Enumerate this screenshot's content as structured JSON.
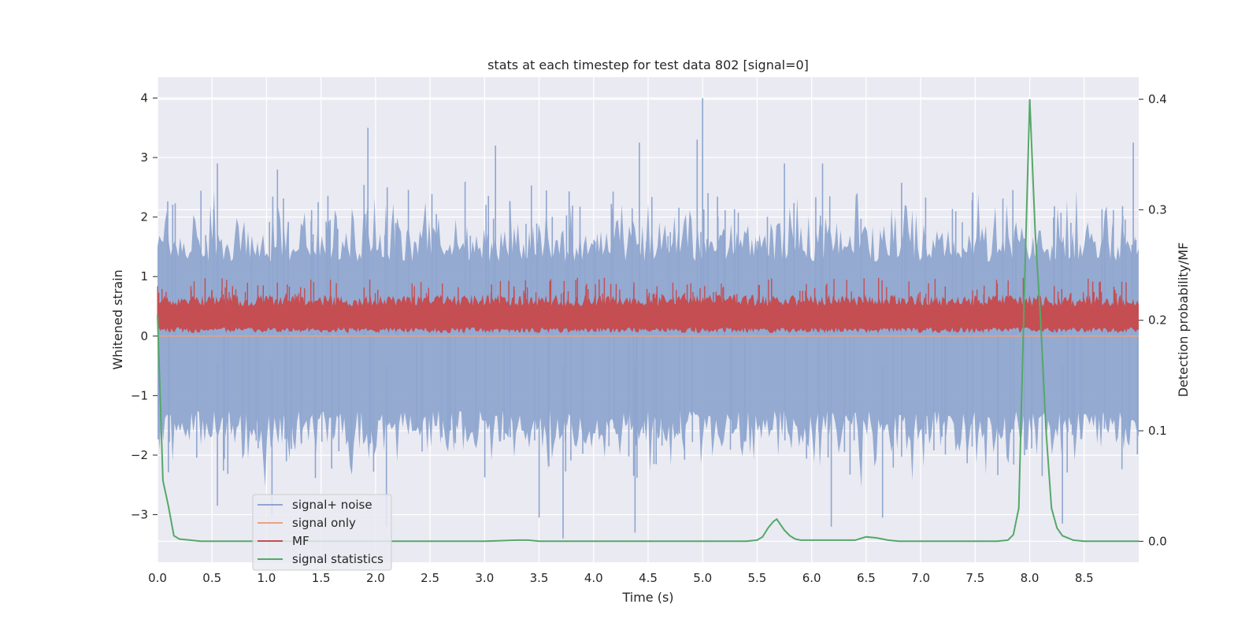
{
  "chart_data": {
    "type": "line",
    "title": "stats at each timestep for test data 802 [signal=0]",
    "xlabel": "Time (s)",
    "ylabel": "Whitened strain",
    "y2label": "Detection probability/MF",
    "xlim": [
      0.0,
      9.0
    ],
    "ylim": [
      -3.8,
      4.35
    ],
    "y2lim": [
      -0.019,
      0.42
    ],
    "x_ticks": [
      "0.0",
      "0.5",
      "1.0",
      "1.5",
      "2.0",
      "2.5",
      "3.0",
      "3.5",
      "4.0",
      "4.5",
      "5.0",
      "5.5",
      "6.0",
      "6.5",
      "7.0",
      "7.5",
      "8.0",
      "8.5"
    ],
    "y_ticks": [
      "4",
      "3",
      "2",
      "1",
      "0",
      "−1",
      "−2",
      "−3"
    ],
    "y2_ticks": [
      "0.4",
      "0.3",
      "0.2",
      "0.1",
      "0.0"
    ],
    "grid": true,
    "legend_position": "lower-left",
    "legend": [
      {
        "label": "signal+ noise",
        "color": "#8fa6cf"
      },
      {
        "label": "signal only",
        "color": "#e8a182"
      },
      {
        "label": "MF",
        "color": "#c44e52"
      },
      {
        "label": "signal statistics",
        "color": "#55a868"
      }
    ],
    "series": [
      {
        "name": "signal+ noise",
        "axis": "left",
        "description": "dense whitened noise, approximately -1.9..2.1 envelope with spikes",
        "peaks": [
          {
            "x": 0.55,
            "y": 2.9
          },
          {
            "x": 1.1,
            "y": 2.8
          },
          {
            "x": 1.93,
            "y": 3.5
          },
          {
            "x": 3.1,
            "y": 3.2
          },
          {
            "x": 4.42,
            "y": 3.25
          },
          {
            "x": 4.95,
            "y": 3.3
          },
          {
            "x": 5.0,
            "y": 4.0
          },
          {
            "x": 5.75,
            "y": 2.9
          },
          {
            "x": 6.1,
            "y": 2.9
          },
          {
            "x": 8.95,
            "y": 3.25
          }
        ],
        "troughs": [
          {
            "x": 0.55,
            "y": -2.85
          },
          {
            "x": 1.05,
            "y": -3.0
          },
          {
            "x": 2.1,
            "y": -3.2
          },
          {
            "x": 3.5,
            "y": -3.05
          },
          {
            "x": 3.72,
            "y": -3.4
          },
          {
            "x": 4.38,
            "y": -3.3
          },
          {
            "x": 6.18,
            "y": -3.2
          },
          {
            "x": 6.65,
            "y": -3.05
          },
          {
            "x": 8.3,
            "y": -3.15
          }
        ]
      },
      {
        "name": "signal only",
        "axis": "left",
        "x": [
          0.0,
          9.0
        ],
        "values": [
          0.0,
          0.0
        ]
      },
      {
        "name": "MF",
        "axis": "left",
        "description": "matched-filter output, roughly 0.0..0.9 band"
      },
      {
        "name": "signal statistics",
        "axis": "right",
        "x": [
          0.0,
          0.05,
          0.1,
          0.15,
          0.2,
          0.3,
          0.4,
          0.5,
          1.0,
          2.0,
          3.0,
          3.3,
          3.4,
          3.5,
          4.0,
          5.0,
          5.4,
          5.5,
          5.55,
          5.6,
          5.65,
          5.68,
          5.75,
          5.8,
          5.85,
          5.9,
          6.0,
          6.2,
          6.4,
          6.5,
          6.6,
          6.7,
          6.8,
          7.0,
          7.5,
          7.7,
          7.8,
          7.85,
          7.9,
          7.95,
          8.0,
          8.05,
          8.1,
          8.15,
          8.2,
          8.25,
          8.3,
          8.35,
          8.4,
          8.5,
          8.6,
          9.0
        ],
        "values": [
          0.205,
          0.055,
          0.032,
          0.005,
          0.002,
          0.001,
          0.0,
          0.0,
          0.0,
          0.0,
          0.0,
          0.001,
          0.001,
          0.0,
          0.0,
          0.0,
          0.0,
          0.001,
          0.004,
          0.012,
          0.018,
          0.02,
          0.01,
          0.005,
          0.002,
          0.001,
          0.001,
          0.001,
          0.001,
          0.004,
          0.003,
          0.001,
          0.0,
          0.0,
          0.0,
          0.0,
          0.001,
          0.006,
          0.03,
          0.22,
          0.4,
          0.28,
          0.2,
          0.1,
          0.03,
          0.012,
          0.005,
          0.003,
          0.001,
          0.0,
          0.0,
          0.0
        ]
      }
    ]
  }
}
